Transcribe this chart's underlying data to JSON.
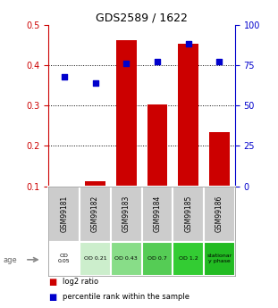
{
  "title": "GDS2589 / 1622",
  "categories": [
    "GSM99181",
    "GSM99182",
    "GSM99183",
    "GSM99184",
    "GSM99185",
    "GSM99186"
  ],
  "bar_values": [
    0.101,
    0.113,
    0.462,
    0.302,
    0.452,
    0.234
  ],
  "scatter_values": [
    0.37,
    0.355,
    0.405,
    0.408,
    0.453,
    0.408
  ],
  "bar_color": "#cc0000",
  "scatter_color": "#0000cc",
  "ylim": [
    0.1,
    0.5
  ],
  "yticks_left": [
    0.1,
    0.2,
    0.3,
    0.4,
    0.5
  ],
  "yticks_right": [
    0,
    25,
    50,
    75,
    100
  ],
  "age_labels": [
    "OD\n0.05",
    "OD 0.21",
    "OD 0.43",
    "OD 0.7",
    "OD 1.2",
    "stationar\ny phase"
  ],
  "age_bg_colors": [
    "#ffffff",
    "#bbeeaa",
    "#88dd66",
    "#55cc33",
    "#33bb22",
    "#22aa11"
  ],
  "sample_bg_color": "#cccccc",
  "legend_red": "log2 ratio",
  "legend_blue": "percentile rank within the sample"
}
